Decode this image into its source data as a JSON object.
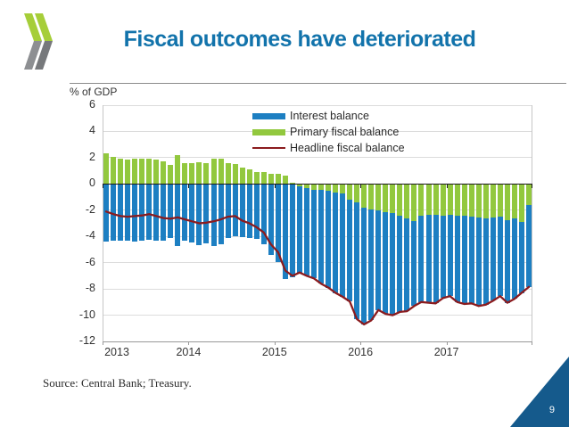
{
  "slide": {
    "title": "Fiscal outcomes have deteriorated",
    "source": "Source: Central Bank; Treasury.",
    "page_number": "9"
  },
  "logo": {
    "green": "#a6ce39",
    "gray": "#8d8f92"
  },
  "accents": {
    "title_blue": "#1273ab",
    "corner_triangle_blue": "#155a8c"
  },
  "chart_data": {
    "type": "bar",
    "stacked": true,
    "line_overlay": true,
    "ylabel": "% of GDP",
    "ylim": [
      -12,
      6
    ],
    "y_ticks": [
      6,
      4,
      2,
      0,
      -2,
      -4,
      -6,
      -8,
      -10,
      -12
    ],
    "y_tick_labels": [
      "6",
      "4",
      "2",
      "0",
      "-2",
      "-4",
      "-6",
      "-8",
      "-10",
      "-12"
    ],
    "x_tick_labels": [
      "2013",
      "2014",
      "2015",
      "2016",
      "2017"
    ],
    "x_unit": "month",
    "x_start": "2013-01",
    "x_points": 60,
    "grid": true,
    "legend_position": "top-right-inside",
    "series": [
      {
        "name": "Interest balance",
        "type": "bar",
        "color": "#1d7fc2",
        "values": [
          -4.4,
          -4.35,
          -4.35,
          -4.35,
          -4.4,
          -4.3,
          -4.25,
          -4.3,
          -4.3,
          -4.1,
          -4.75,
          -4.3,
          -4.45,
          -4.65,
          -4.55,
          -4.75,
          -4.6,
          -4.1,
          -4.0,
          -4.05,
          -4.1,
          -4.2,
          -4.6,
          -5.4,
          -5.95,
          -7.25,
          -7.1,
          -6.55,
          -6.65,
          -6.75,
          -7.15,
          -7.35,
          -7.65,
          -7.85,
          -7.75,
          -8.9,
          -8.9,
          -8.45,
          -7.6,
          -7.75,
          -7.8,
          -7.35,
          -7.1,
          -6.5,
          -6.55,
          -6.7,
          -6.75,
          -6.25,
          -6.2,
          -6.6,
          -6.7,
          -6.6,
          -6.75,
          -6.6,
          -6.35,
          -6.05,
          -6.3,
          -6.15,
          -5.4,
          -6.25
        ]
      },
      {
        "name": "Primary fiscal balance",
        "type": "bar",
        "color": "#92c83e",
        "values": [
          2.3,
          2.05,
          1.9,
          1.85,
          1.95,
          1.9,
          1.95,
          1.85,
          1.7,
          1.45,
          2.2,
          1.6,
          1.6,
          1.65,
          1.6,
          1.9,
          1.9,
          1.6,
          1.55,
          1.25,
          1.1,
          0.9,
          0.9,
          0.8,
          0.75,
          0.65,
          0.1,
          -0.2,
          -0.35,
          -0.45,
          -0.45,
          -0.55,
          -0.65,
          -0.75,
          -1.2,
          -1.4,
          -1.8,
          -1.95,
          -2.0,
          -2.15,
          -2.2,
          -2.4,
          -2.6,
          -2.8,
          -2.45,
          -2.35,
          -2.35,
          -2.45,
          -2.35,
          -2.4,
          -2.45,
          -2.5,
          -2.55,
          -2.6,
          -2.55,
          -2.5,
          -2.75,
          -2.6,
          -2.9,
          -1.6
        ]
      },
      {
        "name": "Headline fiscal balance",
        "type": "line",
        "color": "#8b1b1e",
        "values": [
          -2.1,
          -2.3,
          -2.45,
          -2.5,
          -2.45,
          -2.4,
          -2.3,
          -2.45,
          -2.6,
          -2.65,
          -2.55,
          -2.7,
          -2.85,
          -3.0,
          -2.95,
          -2.85,
          -2.7,
          -2.5,
          -2.45,
          -2.8,
          -3.0,
          -3.3,
          -3.7,
          -4.6,
          -5.2,
          -6.6,
          -7.0,
          -6.75,
          -7.0,
          -7.2,
          -7.6,
          -7.9,
          -8.3,
          -8.6,
          -8.95,
          -10.3,
          -10.7,
          -10.4,
          -9.6,
          -9.9,
          -10.0,
          -9.75,
          -9.7,
          -9.3,
          -9.0,
          -9.05,
          -9.1,
          -8.7,
          -8.55,
          -9.0,
          -9.15,
          -9.1,
          -9.3,
          -9.2,
          -8.9,
          -8.55,
          -9.05,
          -8.75,
          -8.3,
          -7.85
        ]
      }
    ]
  }
}
